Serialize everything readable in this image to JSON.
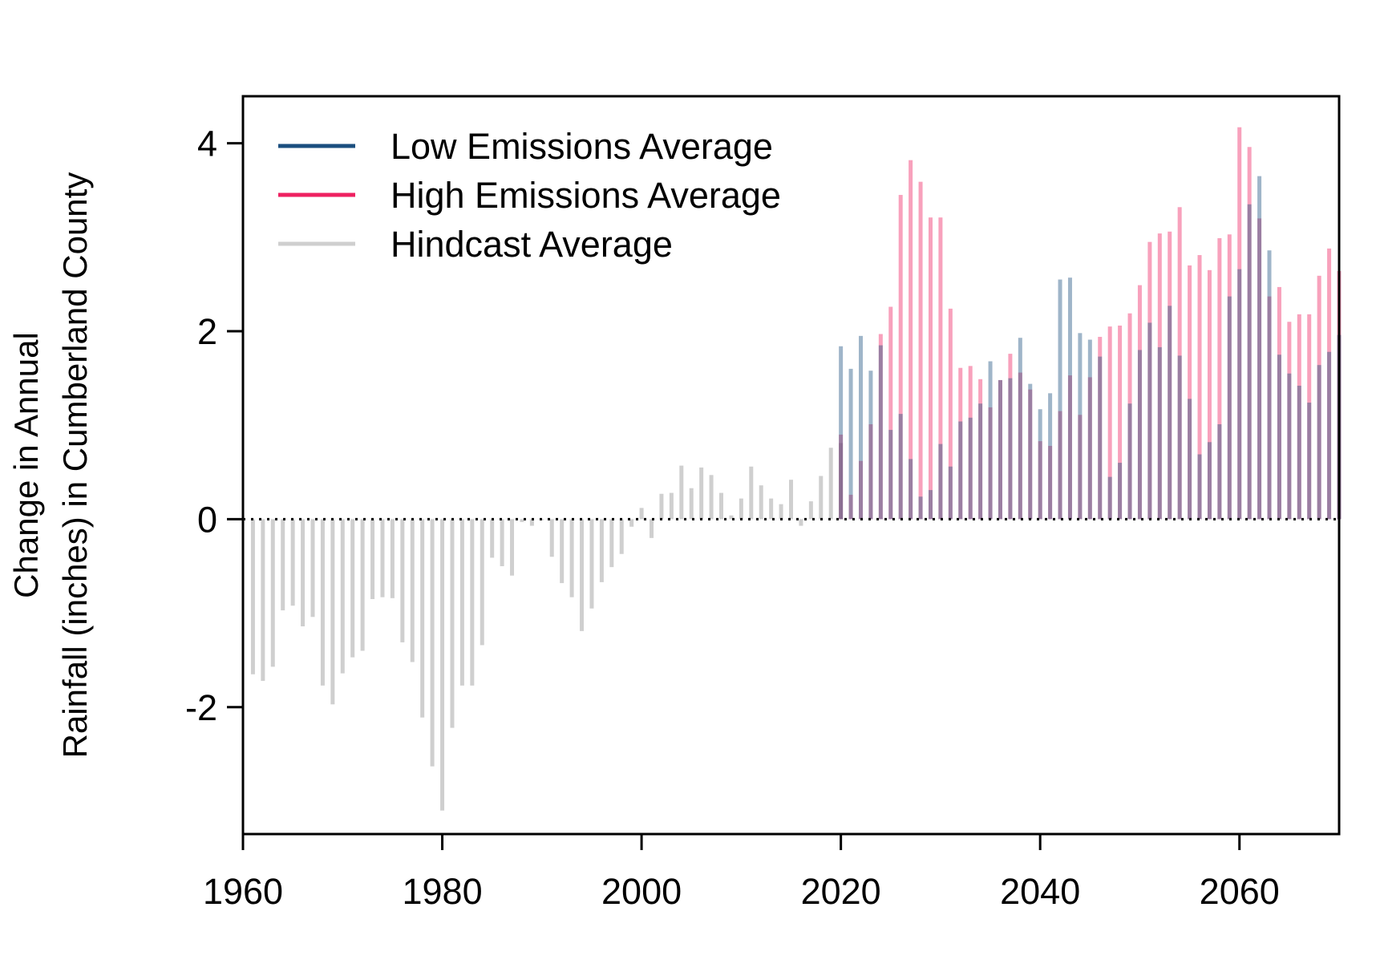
{
  "colors": {
    "low": "#1b4f7f",
    "high": "#ee2060",
    "hindcast": "#cfcfcf",
    "low_bar": "rgba(27,79,127,0.42)",
    "high_bar": "rgba(238,32,96,0.42)",
    "frame": "#000000"
  },
  "chart_data": {
    "type": "bar",
    "title": "",
    "xlabel": "",
    "ylabel_lines": [
      "Change in Annual",
      "Rainfall (inches) in Cumberland County"
    ],
    "xlim": [
      1960,
      2070
    ],
    "ylim": [
      -3.35,
      4.5
    ],
    "x_ticks": [
      1960,
      1980,
      2000,
      2020,
      2040,
      2060
    ],
    "y_ticks": [
      -2,
      0,
      2,
      4
    ],
    "grid": false,
    "reference_line": {
      "y": 0,
      "style": "dotted"
    },
    "legend_position": "top-left",
    "legend": [
      {
        "name": "Low Emissions Average",
        "series": "low"
      },
      {
        "name": "High Emissions Average",
        "series": "high"
      },
      {
        "name": "Hindcast Average",
        "series": "hindcast"
      }
    ],
    "hindcast": {
      "name": "Hindcast Average",
      "x_start": 1961,
      "values": [
        -1.65,
        -1.72,
        -1.57,
        -0.97,
        -0.92,
        -1.14,
        -1.04,
        -1.77,
        -1.97,
        -1.64,
        -1.47,
        -1.4,
        -0.85,
        -0.83,
        -0.84,
        -1.31,
        -1.52,
        -2.11,
        -2.63,
        -3.1,
        -2.22,
        -1.77,
        -1.77,
        -1.34,
        -0.41,
        -0.5,
        -0.6,
        -0.03,
        -0.07,
        -0.01,
        -0.4,
        -0.68,
        -0.83,
        -1.19,
        -0.95,
        -0.67,
        -0.51,
        -0.37,
        -0.08,
        0.12,
        -0.2,
        0.27,
        0.28,
        0.57,
        0.33,
        0.55,
        0.47,
        0.28,
        0.04,
        0.22,
        0.56,
        0.36,
        0.22,
        0.16,
        0.42,
        -0.07,
        0.19,
        0.46,
        0.76,
        0.81
      ]
    },
    "low": {
      "name": "Low Emissions Average",
      "x_start": 2020,
      "values": [
        1.84,
        1.6,
        1.95,
        1.58,
        1.85,
        0.95,
        1.12,
        0.64,
        0.24,
        0.31,
        0.8,
        0.56,
        1.04,
        1.08,
        1.23,
        1.68,
        1.48,
        1.5,
        1.93,
        1.44,
        1.17,
        1.34,
        2.55,
        2.57,
        1.98,
        1.91,
        1.73,
        0.45,
        0.6,
        1.23,
        1.8,
        2.09,
        1.83,
        2.27,
        1.74,
        1.28,
        0.69,
        0.82,
        1.01,
        2.37,
        2.66,
        3.35,
        3.65,
        2.86,
        1.75,
        1.55,
        1.42,
        1.24,
        1.64,
        1.78,
        1.96
      ]
    },
    "high": {
      "name": "High Emissions Average",
      "x_start": 2020,
      "values": [
        0.9,
        0.26,
        0.62,
        1.01,
        1.97,
        2.26,
        3.45,
        3.82,
        3.59,
        3.21,
        3.21,
        2.24,
        1.61,
        1.63,
        1.49,
        1.19,
        1.48,
        1.76,
        1.56,
        1.38,
        0.83,
        0.78,
        1.15,
        1.53,
        1.11,
        1.51,
        1.94,
        2.05,
        2.06,
        2.19,
        2.49,
        2.95,
        3.04,
        3.06,
        3.32,
        2.7,
        2.81,
        2.65,
        2.99,
        3.03,
        4.17,
        3.96,
        3.2,
        2.37,
        2.47,
        2.1,
        2.18,
        2.18,
        2.59,
        2.88,
        2.64
      ]
    }
  }
}
